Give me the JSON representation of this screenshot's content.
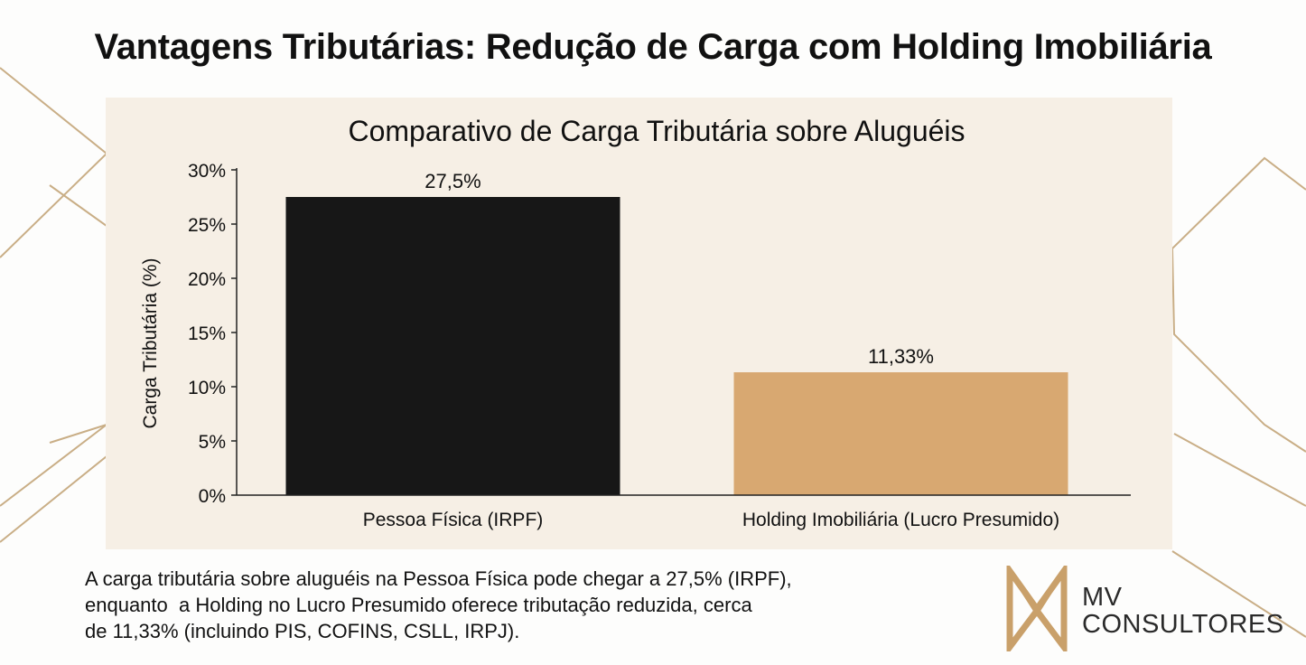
{
  "page": {
    "headline": "Vantagens Tributárias: Redução de Carga com Holding Imobiliária",
    "caption_lines": [
      "A carga tributária sobre aluguéis na Pessoa Física pode chegar a 27,5% (IRPF),",
      "enquanto  a Holding no Lucro Presumido oferece tributação reduzida, cerca",
      "de 11,33% (incluindo PIS, COFINS, CSLL, IRPJ)."
    ],
    "logo": {
      "line1": "MV",
      "line2": "CONSULTORES",
      "color": "#c9a06a"
    }
  },
  "chart_data": {
    "type": "bar",
    "title": "Comparativo de Carga Tributária sobre Aluguéis",
    "xlabel": "",
    "ylabel": "Carga Tributária (%)",
    "categories": [
      "Pessoa Física (IRPF)",
      "Holding Imobiliária (Lucro Presumido)"
    ],
    "values": [
      27.5,
      11.33
    ],
    "data_labels": [
      "27,5%",
      "11,33%"
    ],
    "bar_colors": [
      "#171717",
      "#d8a871"
    ],
    "ylim": [
      0,
      30
    ],
    "yticks": [
      0,
      5,
      10,
      15,
      20,
      25,
      30
    ],
    "ytick_labels": [
      "0%",
      "5%",
      "10%",
      "15%",
      "20%",
      "25%",
      "30%"
    ],
    "grid": false,
    "background": "#f6efe5"
  }
}
